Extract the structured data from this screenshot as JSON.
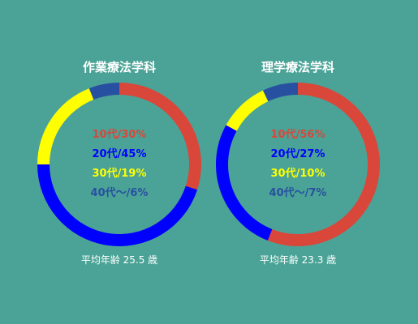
{
  "chart_data": [
    {
      "type": "pie",
      "title": "作業療法学科",
      "labels": [
        "10代/30%",
        "20代/45%",
        "30代/19%",
        "40代〜/6%"
      ],
      "values": [
        30,
        45,
        19,
        6
      ],
      "colors": [
        "#d9473a",
        "#0000ff",
        "#ffff00",
        "#2850a0"
      ],
      "note": "平均年齢 25.5 歳"
    },
    {
      "type": "pie",
      "title": "理学療法学科",
      "labels": [
        "10代/56%",
        "20代/27%",
        "30代/10%",
        "40代〜/7%"
      ],
      "values": [
        56,
        27,
        10,
        7
      ],
      "colors": [
        "#d9473a",
        "#0000ff",
        "#ffff00",
        "#2850a0"
      ],
      "note": "平均年齢 23.3 歳"
    }
  ]
}
